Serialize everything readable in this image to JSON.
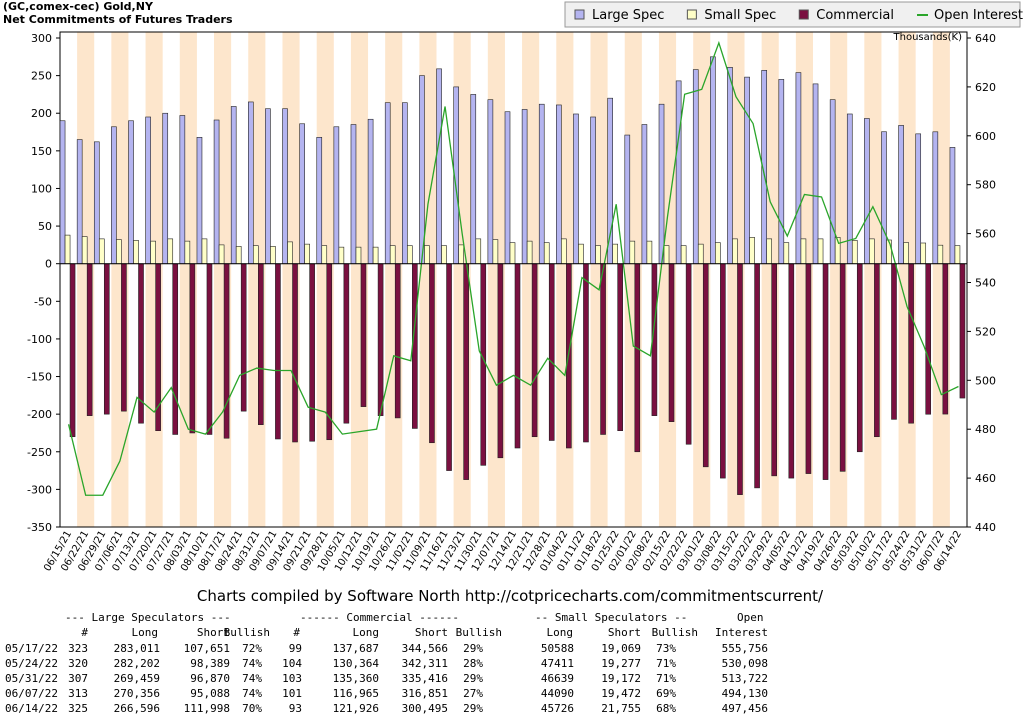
{
  "chart_data": {
    "type": "bar",
    "title": "(GC,comex-cec) Gold,NY",
    "subtitle": "Net Commitments of Futures Traders",
    "y2_label": "Thousands(K)",
    "annotation": "Charts compiled by Software North  http://cotpricecharts.com/commitmentscurrent/",
    "legend": "top-right",
    "categories": [
      "06/15/21",
      "06/22/21",
      "06/29/21",
      "07/06/21",
      "07/13/21",
      "07/20/21",
      "07/27/21",
      "08/03/21",
      "08/10/21",
      "08/17/21",
      "08/24/21",
      "08/31/21",
      "09/07/21",
      "09/14/21",
      "09/21/21",
      "09/28/21",
      "10/05/21",
      "10/12/21",
      "10/19/21",
      "10/26/21",
      "11/02/21",
      "11/09/21",
      "11/16/21",
      "11/23/21",
      "11/30/21",
      "12/07/21",
      "12/14/21",
      "12/21/21",
      "12/28/21",
      "01/04/22",
      "01/11/22",
      "01/18/22",
      "01/25/22",
      "02/01/22",
      "02/08/22",
      "02/15/22",
      "02/22/22",
      "03/01/22",
      "03/08/22",
      "03/15/22",
      "03/22/22",
      "03/29/22",
      "04/05/22",
      "04/12/22",
      "04/19/22",
      "04/26/22",
      "05/03/22",
      "05/10/22",
      "05/17/22",
      "05/24/22",
      "05/31/22",
      "06/07/22",
      "06/14/22"
    ],
    "series": [
      {
        "name": "Large Spec",
        "color": "#b4b4f0",
        "values": [
          190,
          165,
          162,
          182,
          190,
          195,
          200,
          197,
          168,
          191,
          209,
          215,
          206,
          206,
          186,
          168,
          182,
          185,
          192,
          214,
          214,
          250,
          259,
          235,
          225,
          218,
          202,
          205,
          212,
          211,
          199,
          195,
          220,
          171,
          185,
          212,
          243,
          258,
          275,
          261,
          248,
          257,
          245,
          254,
          239,
          218,
          199,
          193,
          175.4,
          183.8,
          172.6,
          175.3,
          154.6
        ]
      },
      {
        "name": "Small Spec",
        "color": "#ffffc8",
        "values": [
          38,
          36,
          33,
          32,
          31,
          30,
          33,
          30,
          33,
          25,
          23,
          24,
          23,
          29,
          26,
          24,
          22,
          22,
          22,
          24,
          24,
          24,
          24,
          25,
          33,
          32,
          28,
          30,
          28,
          33,
          26,
          24,
          26,
          30,
          30,
          24,
          24,
          26,
          28,
          33,
          35,
          33,
          28,
          33,
          33,
          35,
          31,
          33,
          31.5,
          28.1,
          27.5,
          24.6,
          24.0
        ]
      },
      {
        "name": "Commercial",
        "color": "#7a1040",
        "values": [
          -230,
          -202,
          -200,
          -196,
          -212,
          -222,
          -227,
          -225,
          -227,
          -232,
          -196,
          -214,
          -233,
          -237,
          -236,
          -234,
          -212,
          -190,
          -202,
          -205,
          -219,
          -238,
          -275,
          -287,
          -268,
          -258,
          -245,
          -230,
          -235,
          -245,
          -237,
          -227,
          -222,
          -250,
          -202,
          -210,
          -240,
          -270,
          -285,
          -307,
          -298,
          -282,
          -285,
          -279,
          -287,
          -276,
          -250,
          -230,
          -206.9,
          -212.0,
          -200.1,
          -199.9,
          -178.6
        ]
      },
      {
        "name": "Open Interest",
        "color": "#2aa52a",
        "axis": "y2",
        "values": [
          482,
          453,
          453,
          467,
          493,
          487,
          497,
          480,
          478,
          487,
          502,
          505,
          504,
          504,
          489,
          487,
          478,
          479,
          480,
          510,
          508,
          572,
          612,
          560,
          512,
          498,
          502,
          498,
          509,
          502,
          542,
          537,
          572,
          514,
          510,
          567,
          617,
          619,
          638,
          616,
          605,
          573,
          559,
          576,
          575,
          556,
          558,
          571,
          555.756,
          530.098,
          513.722,
          494.13,
          497.456
        ]
      }
    ],
    "ylim": [
      -350,
      300
    ],
    "yticks": [
      -350,
      -300,
      -250,
      -200,
      -150,
      -100,
      -50,
      0,
      50,
      100,
      150,
      200,
      250,
      300
    ],
    "y2lim": [
      440,
      640
    ],
    "y2ticks": [
      440,
      460,
      480,
      500,
      520,
      540,
      560,
      580,
      600,
      620,
      640
    ]
  },
  "table": {
    "group_headers": [
      "--- Large Speculators ---",
      "------ Commercial ------",
      "-- Small Speculators --",
      "Open"
    ],
    "columns": [
      "#",
      "Long",
      "Short",
      "Bullish",
      "#",
      "Long",
      "Short",
      "Bullish",
      "Long",
      "Short",
      "Bullish",
      "Interest"
    ],
    "rows": [
      [
        "05/17/22",
        "323",
        "283,011",
        "107,651",
        "72%",
        "99",
        "137,687",
        "344,566",
        "29%",
        "50588",
        "19,069",
        "73%",
        "555,756"
      ],
      [
        "05/24/22",
        "320",
        "282,202",
        "98,389",
        "74%",
        "104",
        "130,364",
        "342,311",
        "28%",
        "47411",
        "19,277",
        "71%",
        "530,098"
      ],
      [
        "05/31/22",
        "307",
        "269,459",
        "96,870",
        "74%",
        "103",
        "135,360",
        "335,416",
        "29%",
        "46639",
        "19,172",
        "71%",
        "513,722"
      ],
      [
        "06/07/22",
        "313",
        "270,356",
        "95,088",
        "74%",
        "101",
        "116,965",
        "316,851",
        "27%",
        "44090",
        "19,472",
        "69%",
        "494,130"
      ],
      [
        "06/14/22",
        "325",
        "266,596",
        "111,998",
        "70%",
        "93",
        "121,926",
        "300,495",
        "29%",
        "45726",
        "21,755",
        "68%",
        "497,456"
      ]
    ]
  }
}
